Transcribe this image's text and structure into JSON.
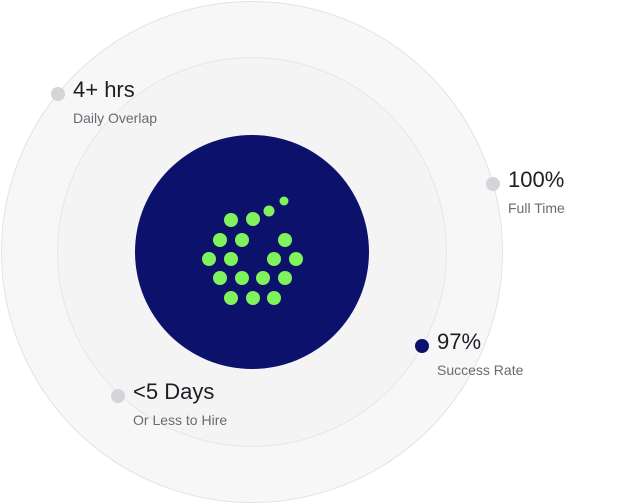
{
  "colors": {
    "core": "#0c126b",
    "logo_dot": "#7ff25c",
    "marker_gray": "#d4d4d9",
    "marker_active": "#0c126b"
  },
  "logo": {
    "icon": "dot-cluster-logo-icon"
  },
  "stats": [
    {
      "value": "4+ hrs",
      "label": "Daily Overlap",
      "active": false
    },
    {
      "value": "100%",
      "label": "Full Time",
      "active": false
    },
    {
      "value": "97%",
      "label": "Success Rate",
      "active": true
    },
    {
      "value": "<5 Days",
      "label": "Or Less to Hire",
      "active": false
    }
  ]
}
